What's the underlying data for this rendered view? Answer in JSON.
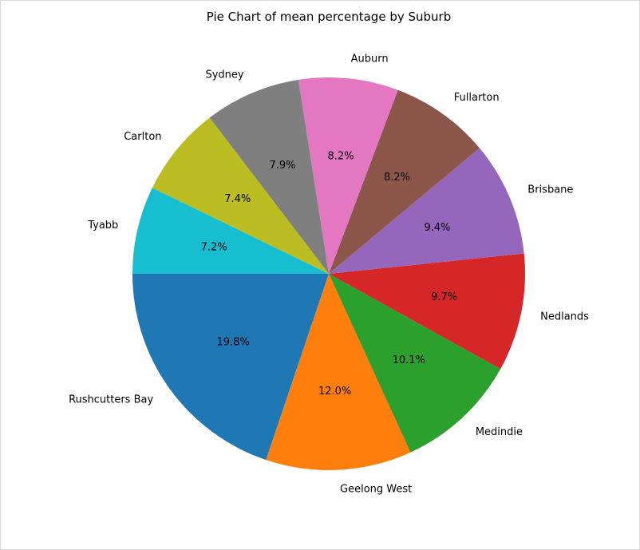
{
  "chart_data": {
    "type": "pie",
    "title": "Pie Chart of mean percentage by Suburb",
    "start_angle_deg": 180,
    "direction": "counterclockwise",
    "legend": "none",
    "slices": [
      {
        "label": "Rushcutters Bay",
        "value": 19.8,
        "pct_label": "19.8%",
        "color": "#1f77b4"
      },
      {
        "label": "Geelong West",
        "value": 12.0,
        "pct_label": "12.0%",
        "color": "#ff7f0e"
      },
      {
        "label": "Medindie",
        "value": 10.1,
        "pct_label": "10.1%",
        "color": "#2ca02c"
      },
      {
        "label": "Nedlands",
        "value": 9.7,
        "pct_label": "9.7%",
        "color": "#d62728"
      },
      {
        "label": "Brisbane",
        "value": 9.4,
        "pct_label": "9.4%",
        "color": "#9467bd"
      },
      {
        "label": "Fullarton",
        "value": 8.2,
        "pct_label": "8.2%",
        "color": "#8c564b"
      },
      {
        "label": "Auburn",
        "value": 8.2,
        "pct_label": "8.2%",
        "color": "#e377c2"
      },
      {
        "label": "Sydney",
        "value": 7.9,
        "pct_label": "7.9%",
        "color": "#7f7f7f"
      },
      {
        "label": "Carlton",
        "value": 7.4,
        "pct_label": "7.4%",
        "color": "#bcbd22"
      },
      {
        "label": "Tyabb",
        "value": 7.2,
        "pct_label": "7.2%",
        "color": "#17becf"
      }
    ]
  }
}
